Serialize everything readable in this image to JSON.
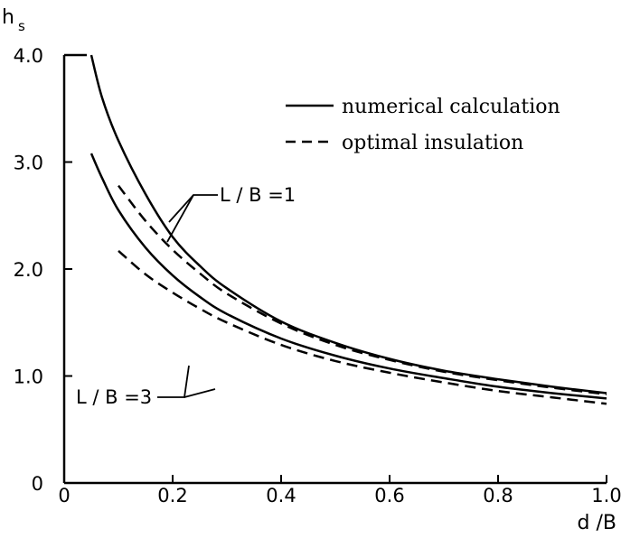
{
  "chart_data": {
    "type": "line",
    "xlabel": "d /B",
    "ylabel": "h",
    "ylabel_sub": "s",
    "xlim": [
      0,
      1.0
    ],
    "ylim": [
      0,
      4.0
    ],
    "x_ticks": [
      {
        "value": 0,
        "label": "0"
      },
      {
        "value": 0.2,
        "label": "0.2"
      },
      {
        "value": 0.4,
        "label": "0.4"
      },
      {
        "value": 0.6,
        "label": "0.6"
      },
      {
        "value": 0.8,
        "label": "0.8"
      },
      {
        "value": 1.0,
        "label": "1.0"
      }
    ],
    "y_ticks": [
      {
        "value": 0,
        "label": "0"
      },
      {
        "value": 1.0,
        "label": "1.0"
      },
      {
        "value": 2.0,
        "label": "2.0"
      },
      {
        "value": 3.0,
        "label": "3.0"
      },
      {
        "value": 4.0,
        "label": "4.0"
      }
    ],
    "grid": false,
    "legend_position": "top-right",
    "legend": [
      {
        "label": "numerical calculation",
        "style": "solid"
      },
      {
        "label": "optimal insulation",
        "style": "dashed"
      }
    ],
    "annotations": [
      {
        "text": "L / B =1"
      },
      {
        "text": "L / B =3"
      }
    ],
    "series": [
      {
        "group": "L / B =1",
        "style": "solid",
        "x": [
          0.05,
          0.07,
          0.1,
          0.15,
          0.2,
          0.25,
          0.3,
          0.4,
          0.5,
          0.6,
          0.7,
          0.8,
          0.9,
          1.0
        ],
        "y": [
          4.0,
          3.6,
          3.2,
          2.7,
          2.3,
          2.03,
          1.82,
          1.51,
          1.31,
          1.16,
          1.05,
          0.97,
          0.9,
          0.84
        ]
      },
      {
        "group": "L / B =1",
        "style": "dashed",
        "x": [
          0.1,
          0.15,
          0.2,
          0.25,
          0.3,
          0.4,
          0.5,
          0.6,
          0.7,
          0.8,
          0.9,
          1.0
        ],
        "y": [
          2.78,
          2.45,
          2.18,
          1.96,
          1.77,
          1.49,
          1.29,
          1.15,
          1.04,
          0.96,
          0.89,
          0.83
        ]
      },
      {
        "group": "L / B =3",
        "style": "solid",
        "x": [
          0.05,
          0.07,
          0.1,
          0.15,
          0.2,
          0.25,
          0.3,
          0.4,
          0.5,
          0.6,
          0.7,
          0.8,
          0.9,
          1.0
        ],
        "y": [
          3.08,
          2.85,
          2.55,
          2.2,
          1.94,
          1.74,
          1.58,
          1.35,
          1.19,
          1.07,
          0.98,
          0.9,
          0.84,
          0.79
        ]
      },
      {
        "group": "L / B =3",
        "style": "dashed",
        "x": [
          0.1,
          0.15,
          0.2,
          0.25,
          0.3,
          0.4,
          0.5,
          0.6,
          0.7,
          0.8,
          0.9,
          1.0
        ],
        "y": [
          2.17,
          1.95,
          1.78,
          1.63,
          1.5,
          1.29,
          1.14,
          1.03,
          0.94,
          0.86,
          0.8,
          0.74
        ]
      }
    ]
  }
}
